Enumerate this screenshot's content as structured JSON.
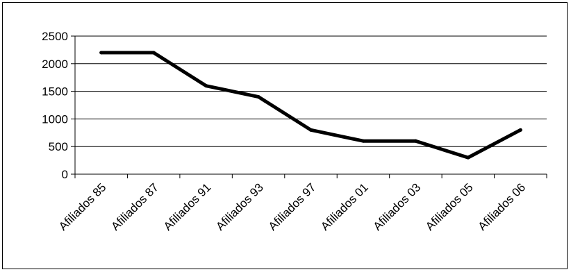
{
  "chart_data": {
    "type": "line",
    "title": "",
    "xlabel": "",
    "ylabel": "",
    "categories": [
      "Afiliados 85",
      "Afiliados 87",
      "Afiliados 91",
      "Afiliados 93",
      "Afiliados 97",
      "Afiliados 01",
      "Afiliados 03",
      "Afiliados 05",
      "Afiliados 06"
    ],
    "series": [
      {
        "values": [
          2200,
          2200,
          1600,
          1400,
          800,
          600,
          600,
          300,
          800
        ],
        "color": "#000000"
      }
    ],
    "ylim": [
      0,
      2500
    ],
    "yticks": [
      "0",
      "500",
      "1000",
      "1500",
      "2000",
      "2500"
    ],
    "grid": true,
    "legend": "none"
  }
}
